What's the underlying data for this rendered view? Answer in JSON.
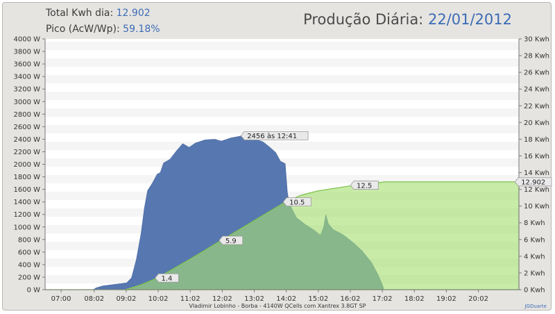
{
  "header": {
    "total_label": "Total Kwh dia:",
    "total_value": "12.902",
    "peak_label": "Pico (AcW/Wp):",
    "peak_value": "59.18%",
    "title_label": "Produção Diária:",
    "title_date": "22/01/2012"
  },
  "footer": {
    "caption": "Vladimir Lobinho  -  Borba  -  4140W QCells com Xantrex 3.8GT SP",
    "credit": "JGDuarte"
  },
  "chart_data": {
    "type": "area",
    "x_ticks": [
      "07:00",
      "08:02",
      "09:02",
      "10:02",
      "11:02",
      "12:02",
      "13:02",
      "14:02",
      "15:02",
      "16:02",
      "17:02",
      "18:02",
      "19:02",
      "20:02"
    ],
    "y_left": {
      "unit": "W",
      "range": [
        0,
        4000
      ],
      "ticks": [
        "0 W",
        "200 W",
        "400 W",
        "600 W",
        "800 W",
        "1000 W",
        "1200 W",
        "1400 W",
        "1600 W",
        "1800 W",
        "2000 W",
        "2200 W",
        "2400 W",
        "2600 W",
        "2800 W",
        "3000 W",
        "3200 W",
        "3400 W",
        "3600 W",
        "3800 W",
        "4000 W"
      ]
    },
    "y_right": {
      "unit": "Kwh",
      "range": [
        0,
        30
      ],
      "ticks": [
        "0 Kwh",
        "2 Kwh",
        "4 Kwh",
        "6 Kwh",
        "8 Kwh",
        "10 Kwh",
        "12 Kwh",
        "14 Kwh",
        "16 Kwh",
        "18 Kwh",
        "20 Kwh",
        "22 Kwh",
        "24 Kwh",
        "26 Kwh",
        "28 Kwh",
        "30 Kwh"
      ]
    },
    "x_range": [
      6.5,
      21.3
    ],
    "series": [
      {
        "type": "area",
        "axis": "left",
        "color": "#5677b0",
        "points": [
          [
            6.5,
            0
          ],
          [
            8.0,
            0
          ],
          [
            8.1,
            30
          ],
          [
            8.3,
            60
          ],
          [
            8.6,
            80
          ],
          [
            8.9,
            100
          ],
          [
            9.05,
            110
          ],
          [
            9.2,
            190
          ],
          [
            9.35,
            480
          ],
          [
            9.5,
            900
          ],
          [
            9.6,
            1300
          ],
          [
            9.7,
            1580
          ],
          [
            9.85,
            1700
          ],
          [
            10.0,
            1840
          ],
          [
            10.1,
            1870
          ],
          [
            10.2,
            2020
          ],
          [
            10.4,
            2080
          ],
          [
            10.6,
            2210
          ],
          [
            10.8,
            2330
          ],
          [
            11.0,
            2270
          ],
          [
            11.2,
            2340
          ],
          [
            11.5,
            2390
          ],
          [
            11.8,
            2400
          ],
          [
            12.0,
            2370
          ],
          [
            12.3,
            2420
          ],
          [
            12.68,
            2456
          ],
          [
            13.0,
            2410
          ],
          [
            13.3,
            2360
          ],
          [
            13.5,
            2280
          ],
          [
            13.7,
            2190
          ],
          [
            13.85,
            2050
          ],
          [
            14.0,
            2010
          ],
          [
            14.07,
            1550
          ],
          [
            14.1,
            1450
          ],
          [
            14.2,
            1300
          ],
          [
            14.35,
            1150
          ],
          [
            14.6,
            1050
          ],
          [
            14.9,
            950
          ],
          [
            15.1,
            870
          ],
          [
            15.2,
            1000
          ],
          [
            15.27,
            1200
          ],
          [
            15.35,
            1050
          ],
          [
            15.5,
            960
          ],
          [
            15.8,
            880
          ],
          [
            16.1,
            760
          ],
          [
            16.4,
            620
          ],
          [
            16.7,
            430
          ],
          [
            16.9,
            240
          ],
          [
            17.0,
            120
          ],
          [
            17.05,
            60
          ],
          [
            17.08,
            0
          ],
          [
            21.3,
            0
          ]
        ]
      },
      {
        "type": "area",
        "axis": "right",
        "color": "#a6df72",
        "points": [
          [
            6.5,
            0
          ],
          [
            9.0,
            0
          ],
          [
            9.5,
            0.6
          ],
          [
            10.0,
            1.4
          ],
          [
            11.0,
            3.6
          ],
          [
            12.0,
            5.9
          ],
          [
            13.0,
            8.2
          ],
          [
            14.0,
            10.5
          ],
          [
            14.5,
            11.3
          ],
          [
            15.0,
            11.8
          ],
          [
            15.5,
            12.1
          ],
          [
            16.0,
            12.4
          ],
          [
            16.5,
            12.6
          ],
          [
            17.0,
            12.85
          ],
          [
            17.1,
            12.902
          ],
          [
            21.3,
            12.902
          ]
        ]
      }
    ],
    "annotations": [
      {
        "text": "2456 às 12:41",
        "x": 12.68,
        "y": 2456,
        "axis": "left"
      },
      {
        "text": "1.4",
        "x": 10.0,
        "y": 1.4,
        "axis": "right"
      },
      {
        "text": "5.9",
        "x": 12.0,
        "y": 5.9,
        "axis": "right"
      },
      {
        "text": "10.5",
        "x": 14.0,
        "y": 10.5,
        "axis": "right"
      },
      {
        "text": "12.5",
        "x": 16.1,
        "y": 12.5,
        "axis": "right"
      },
      {
        "text": "12.902",
        "x": 21.3,
        "y": 12.902,
        "axis": "right"
      }
    ]
  }
}
